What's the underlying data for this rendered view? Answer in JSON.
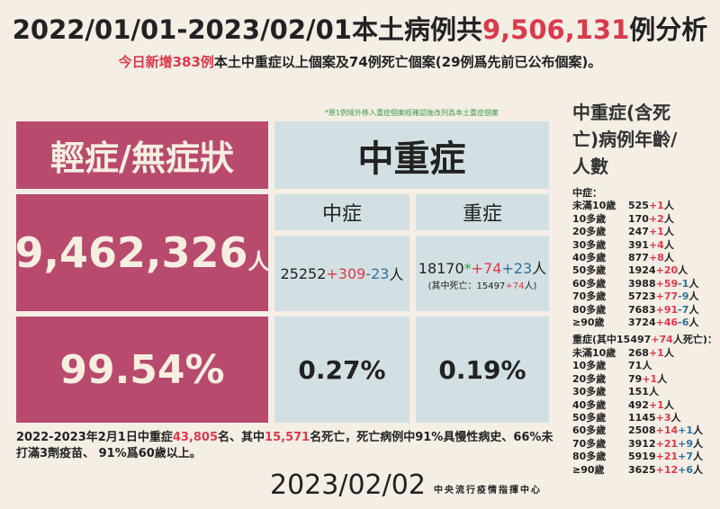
{
  "header": {
    "title": [
      "2022/01/01-2023/02/01本土病例共",
      "9,506,131",
      "例分析"
    ],
    "subtitle": [
      "今日新增383例",
      "本土中重症以上個案及74例死亡個案(29例爲先前已公布個案)。"
    ],
    "note": "*原1例境外移入重症個案經確認後改列爲本土重症個案"
  },
  "mild": {
    "label": "輕症/無症狀",
    "count": "9,462,326",
    "unit": "人",
    "percent": "99.54%"
  },
  "severe_total": {
    "label": "中重症",
    "moderate": {
      "label": "中症",
      "count": "25252",
      "add": "+309",
      "adj": "-23",
      "unit": "人",
      "percent": "0.27%"
    },
    "severe": {
      "label": "重症",
      "count": "18170",
      "star": "*",
      "add": "+74",
      "adj": "+23",
      "unit": "人",
      "death": [
        "(其中死亡：15497",
        "+74",
        "人)"
      ],
      "percent": "0.19%"
    }
  },
  "summary": [
    "2022-2023年2月1日中重症",
    "43,805",
    "名、其中",
    "15,571",
    "名死亡，死亡病例中91%具慢性病史、66%未打滿3劑疫苗、 91%爲60歲以上。"
  ],
  "footer": {
    "date": "2023/02/02",
    "source": "中央流行疫情指揮中心"
  },
  "age_panel": {
    "title": "中重症(含死亡)病例年齡/人數",
    "moderate": {
      "heading": "中症：",
      "rows": [
        {
          "age": "未滿10歲",
          "count": "525",
          "add": "+1",
          "unit": "人"
        },
        {
          "age": "10多歲",
          "count": "170",
          "add": "+2",
          "unit": "人"
        },
        {
          "age": "20多歲",
          "count": "247",
          "add": "+1",
          "unit": "人"
        },
        {
          "age": "30多歲",
          "count": "391",
          "add": "+4",
          "unit": "人"
        },
        {
          "age": "40多歲",
          "count": "877",
          "add": "+8",
          "unit": "人"
        },
        {
          "age": "50多歲",
          "count": "1924",
          "add": "+20",
          "unit": "人"
        },
        {
          "age": "60多歲",
          "count": "3988",
          "add": "+59",
          "adj": "-1",
          "unit": "人"
        },
        {
          "age": "70多歲",
          "count": "5723",
          "add": "+77",
          "adj": "-9",
          "unit": "人"
        },
        {
          "age": "80多歲",
          "count": "7683",
          "add": "+91",
          "adj": "-7",
          "unit": "人"
        },
        {
          "age": "≥90歲",
          "count": "3724",
          "add": "+46",
          "adj": "-6",
          "unit": "人"
        }
      ]
    },
    "severe": {
      "heading": [
        "重症(其中15497",
        "+74",
        "人死亡)："
      ],
      "rows": [
        {
          "age": "未滿10歲",
          "count": "268",
          "add": "+1",
          "unit": "人"
        },
        {
          "age": "10多歲",
          "count": "71",
          "unit": "人"
        },
        {
          "age": "20多歲",
          "count": "79",
          "add": "+1",
          "unit": "人"
        },
        {
          "age": "30多歲",
          "count": "151",
          "unit": "人"
        },
        {
          "age": "40多歲",
          "count": "492",
          "add": "+1",
          "unit": "人"
        },
        {
          "age": "50多歲",
          "count": "1145",
          "add": "+3",
          "unit": "人"
        },
        {
          "age": "60多歲",
          "count": "2508",
          "add": "+14",
          "adj": "+1",
          "unit": "人"
        },
        {
          "age": "70多歲",
          "count": "3912",
          "add": "+21",
          "adj": "+9",
          "unit": "人"
        },
        {
          "age": "80多歲",
          "count": "5919",
          "add": "+21",
          "adj": "+7",
          "unit": "人"
        },
        {
          "age": "≥90歲",
          "count": "3625",
          "add": "+12",
          "adj": "+6",
          "unit": "人"
        }
      ]
    }
  }
}
